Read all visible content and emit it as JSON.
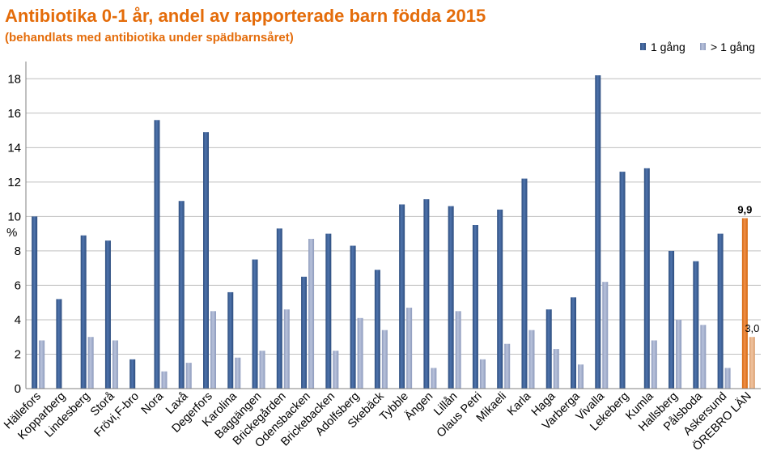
{
  "colors": {
    "title": "#e46c0a",
    "series1": "#2d4d7e",
    "series1_light": "#4f74ad",
    "series2": "#8e9bbd",
    "series2_light": "#b8c2db",
    "highlight1": "#d4660b",
    "highlight2": "#dca071",
    "grid": "#bfbfbf",
    "axis": "#808080"
  },
  "chart_data": {
    "type": "bar",
    "title": "Antibiotika 0-1 år, andel av rapporterade barn födda 2015",
    "subtitle": "(behandlats med antibiotika under spädbarnsåret)",
    "ylabel": "%",
    "xlabel": "",
    "ylim": [
      0,
      19
    ],
    "yticks": [
      0,
      2,
      4,
      6,
      8,
      10,
      12,
      14,
      16,
      18
    ],
    "grid": true,
    "legend_position": "top-right",
    "categories": [
      "Hällefors",
      "Kopparberg",
      "Lindesberg",
      "Storå",
      "Frövi,F-bro",
      "Nora",
      "Laxå",
      "Degerfors",
      "Karolina",
      "Baggängen",
      "Brickegården",
      "Odensbacken",
      "Brickebacken",
      "Adolfsberg",
      "Skebäck",
      "Tybble",
      "Ängen",
      "Lillån",
      "Olaus Petri",
      "Mikaeli",
      "Karla",
      "Haga",
      "Varberga",
      "Vivalla",
      "Lekeberg",
      "Kumla",
      "Hallsberg",
      "Pålsboda",
      "Askersund",
      "ÖREBRO LÄN"
    ],
    "series": [
      {
        "name": "1 gång",
        "values": [
          10.0,
          5.2,
          8.9,
          8.6,
          1.7,
          15.6,
          10.9,
          14.9,
          5.6,
          7.5,
          9.3,
          6.5,
          9.0,
          8.3,
          6.9,
          10.7,
          11.0,
          10.6,
          9.5,
          10.4,
          12.2,
          4.6,
          5.3,
          18.2,
          12.6,
          12.8,
          8.0,
          7.4,
          9.0,
          9.9
        ]
      },
      {
        "name": "> 1 gång",
        "values": [
          2.8,
          0,
          3.0,
          2.8,
          0,
          1.0,
          1.5,
          4.5,
          1.8,
          2.2,
          4.6,
          8.7,
          2.2,
          4.1,
          3.4,
          4.7,
          1.2,
          4.5,
          1.7,
          2.6,
          3.4,
          2.3,
          1.4,
          6.2,
          0,
          2.8,
          4.0,
          3.7,
          1.2,
          3.0
        ]
      }
    ],
    "highlight_category": "ÖREBRO LÄN",
    "data_labels": [
      {
        "category": "ÖREBRO LÄN",
        "series": "1 gång",
        "text": "9,9"
      },
      {
        "category": "ÖREBRO LÄN",
        "series": "> 1 gång",
        "text": "3,0"
      }
    ]
  }
}
